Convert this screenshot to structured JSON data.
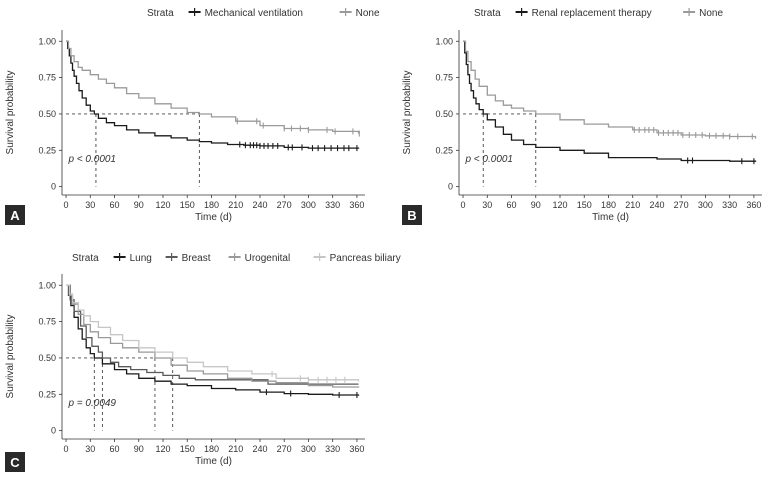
{
  "chart_data": [
    {
      "type": "line",
      "panel": "A",
      "legend_title": "Strata",
      "xlabel": "Time (d)",
      "ylabel": "Survival probability",
      "xticks": [
        0,
        30,
        60,
        90,
        120,
        150,
        180,
        210,
        240,
        270,
        300,
        330,
        360
      ],
      "yticks": [
        0,
        0.25,
        0.5,
        0.75,
        1.0
      ],
      "ytick_labels": [
        "0",
        "0.25",
        "0.50",
        "0.75",
        "1.00"
      ],
      "xlim": [
        -5,
        370
      ],
      "ylim": [
        -0.03,
        1.05
      ],
      "annotation": "p < 0.0001",
      "medians": [
        37,
        165
      ],
      "series": [
        {
          "name": "Mechanical ventilation",
          "color": "#1a1a1a",
          "points": [
            [
              0,
              1.0
            ],
            [
              2,
              0.95
            ],
            [
              4,
              0.9
            ],
            [
              6,
              0.85
            ],
            [
              8,
              0.8
            ],
            [
              10,
              0.76
            ],
            [
              13,
              0.71
            ],
            [
              16,
              0.66
            ],
            [
              20,
              0.61
            ],
            [
              25,
              0.56
            ],
            [
              30,
              0.52
            ],
            [
              35,
              0.5
            ],
            [
              40,
              0.47
            ],
            [
              50,
              0.44
            ],
            [
              60,
              0.42
            ],
            [
              75,
              0.39
            ],
            [
              90,
              0.37
            ],
            [
              110,
              0.35
            ],
            [
              130,
              0.335
            ],
            [
              150,
              0.32
            ],
            [
              165,
              0.31
            ],
            [
              180,
              0.3
            ],
            [
              200,
              0.29
            ],
            [
              220,
              0.285
            ],
            [
              240,
              0.28
            ],
            [
              270,
              0.27
            ],
            [
              300,
              0.265
            ],
            [
              330,
              0.265
            ],
            [
              362,
              0.26
            ]
          ],
          "censor_x": [
            215,
            222,
            228,
            232,
            236,
            240,
            245,
            250,
            256,
            262,
            275,
            280,
            292,
            305,
            312,
            320,
            328,
            336,
            344,
            350,
            360
          ]
        },
        {
          "name": "None",
          "color": "#9a9a9a",
          "points": [
            [
              0,
              1.0
            ],
            [
              3,
              0.95
            ],
            [
              6,
              0.9
            ],
            [
              10,
              0.86
            ],
            [
              15,
              0.82
            ],
            [
              20,
              0.8
            ],
            [
              30,
              0.77
            ],
            [
              40,
              0.74
            ],
            [
              50,
              0.71
            ],
            [
              60,
              0.68
            ],
            [
              75,
              0.64
            ],
            [
              90,
              0.61
            ],
            [
              110,
              0.57
            ],
            [
              130,
              0.54
            ],
            [
              150,
              0.51
            ],
            [
              165,
              0.5
            ],
            [
              180,
              0.48
            ],
            [
              210,
              0.45
            ],
            [
              240,
              0.42
            ],
            [
              270,
              0.4
            ],
            [
              300,
              0.39
            ],
            [
              330,
              0.38
            ],
            [
              362,
              0.365
            ]
          ],
          "censor_x": [
            212,
            236,
            244,
            270,
            279,
            290,
            300,
            323,
            333,
            355,
            363
          ]
        }
      ]
    },
    {
      "type": "line",
      "panel": "B",
      "legend_title": "Strata",
      "xlabel": "Time (d)",
      "ylabel": "Survival probability",
      "xticks": [
        0,
        30,
        60,
        90,
        120,
        150,
        180,
        210,
        240,
        270,
        300,
        330,
        360
      ],
      "yticks": [
        0,
        0.25,
        0.5,
        0.75,
        1.0
      ],
      "ytick_labels": [
        "0",
        "0.25",
        "0.50",
        "0.75",
        "1.00"
      ],
      "xlim": [
        -5,
        370
      ],
      "ylim": [
        -0.03,
        1.05
      ],
      "annotation": "p < 0.0001",
      "medians": [
        25,
        90
      ],
      "series": [
        {
          "name": "Renal replacement therapy",
          "color": "#1a1a1a",
          "points": [
            [
              0,
              1.0
            ],
            [
              2,
              0.92
            ],
            [
              4,
              0.84
            ],
            [
              6,
              0.77
            ],
            [
              8,
              0.71
            ],
            [
              10,
              0.66
            ],
            [
              13,
              0.61
            ],
            [
              16,
              0.57
            ],
            [
              20,
              0.53
            ],
            [
              25,
              0.5
            ],
            [
              30,
              0.46
            ],
            [
              40,
              0.41
            ],
            [
              50,
              0.36
            ],
            [
              60,
              0.32
            ],
            [
              75,
              0.29
            ],
            [
              90,
              0.27
            ],
            [
              120,
              0.25
            ],
            [
              150,
              0.23
            ],
            [
              180,
              0.2
            ],
            [
              210,
              0.2
            ],
            [
              240,
              0.19
            ],
            [
              270,
              0.18
            ],
            [
              300,
              0.18
            ],
            [
              330,
              0.175
            ],
            [
              362,
              0.17
            ]
          ],
          "censor_x": [
            278,
            284,
            345,
            360
          ]
        },
        {
          "name": "None",
          "color": "#9a9a9a",
          "points": [
            [
              0,
              1.0
            ],
            [
              3,
              0.93
            ],
            [
              6,
              0.86
            ],
            [
              10,
              0.8
            ],
            [
              15,
              0.74
            ],
            [
              20,
              0.69
            ],
            [
              30,
              0.63
            ],
            [
              40,
              0.59
            ],
            [
              50,
              0.56
            ],
            [
              60,
              0.54
            ],
            [
              75,
              0.52
            ],
            [
              90,
              0.5
            ],
            [
              120,
              0.46
            ],
            [
              150,
              0.43
            ],
            [
              180,
              0.41
            ],
            [
              210,
              0.39
            ],
            [
              240,
              0.37
            ],
            [
              270,
              0.355
            ],
            [
              300,
              0.35
            ],
            [
              330,
              0.345
            ],
            [
              362,
              0.33
            ]
          ],
          "censor_x": [
            212,
            218,
            225,
            230,
            236,
            242,
            248,
            254,
            260,
            266,
            272,
            280,
            288,
            296,
            305,
            313,
            322,
            330,
            340,
            358
          ]
        }
      ]
    },
    {
      "type": "line",
      "panel": "C",
      "legend_title": "Strata",
      "xlabel": "Time (d)",
      "ylabel": "Survival probability",
      "xticks": [
        0,
        30,
        60,
        90,
        120,
        150,
        180,
        210,
        240,
        270,
        300,
        330,
        360
      ],
      "yticks": [
        0,
        0.25,
        0.5,
        0.75,
        1.0
      ],
      "ytick_labels": [
        "0",
        "0.25",
        "0.50",
        "0.75",
        "1.00"
      ],
      "xlim": [
        -5,
        370
      ],
      "ylim": [
        -0.03,
        1.05
      ],
      "annotation": "p = 0.0049",
      "medians": [
        35,
        45,
        110,
        132
      ],
      "series": [
        {
          "name": "Lung",
          "color": "#1a1a1a",
          "points": [
            [
              0,
              1.0
            ],
            [
              3,
              0.93
            ],
            [
              6,
              0.86
            ],
            [
              10,
              0.78
            ],
            [
              15,
              0.7
            ],
            [
              20,
              0.63
            ],
            [
              25,
              0.57
            ],
            [
              30,
              0.53
            ],
            [
              35,
              0.5
            ],
            [
              45,
              0.46
            ],
            [
              60,
              0.42
            ],
            [
              75,
              0.39
            ],
            [
              90,
              0.36
            ],
            [
              110,
              0.34
            ],
            [
              130,
              0.32
            ],
            [
              150,
              0.31
            ],
            [
              180,
              0.29
            ],
            [
              210,
              0.28
            ],
            [
              240,
              0.265
            ],
            [
              270,
              0.255
            ],
            [
              300,
              0.25
            ],
            [
              330,
              0.245
            ],
            [
              362,
              0.24
            ]
          ],
          "censor_x": [
            248,
            278,
            338,
            360
          ]
        },
        {
          "name": "Breast",
          "color": "#5a5a5a",
          "points": [
            [
              0,
              1.0
            ],
            [
              5,
              0.9
            ],
            [
              10,
              0.82
            ],
            [
              18,
              0.72
            ],
            [
              25,
              0.64
            ],
            [
              32,
              0.58
            ],
            [
              40,
              0.54
            ],
            [
              45,
              0.5
            ],
            [
              55,
              0.47
            ],
            [
              65,
              0.44
            ],
            [
              80,
              0.42
            ],
            [
              100,
              0.4
            ],
            [
              120,
              0.38
            ],
            [
              140,
              0.36
            ],
            [
              160,
              0.35
            ],
            [
              200,
              0.35
            ],
            [
              250,
              0.32
            ],
            [
              300,
              0.32
            ],
            [
              362,
              0.32
            ]
          ],
          "censor_x": []
        },
        {
          "name": "Urogenital",
          "color": "#9a9a9a",
          "points": [
            [
              0,
              1.0
            ],
            [
              4,
              0.93
            ],
            [
              8,
              0.87
            ],
            [
              15,
              0.8
            ],
            [
              22,
              0.73
            ],
            [
              30,
              0.68
            ],
            [
              40,
              0.64
            ],
            [
              55,
              0.6
            ],
            [
              70,
              0.57
            ],
            [
              90,
              0.54
            ],
            [
              110,
              0.5
            ],
            [
              130,
              0.45
            ],
            [
              150,
              0.41
            ],
            [
              170,
              0.39
            ],
            [
              200,
              0.36
            ],
            [
              230,
              0.34
            ],
            [
              260,
              0.33
            ],
            [
              300,
              0.31
            ],
            [
              330,
              0.3
            ],
            [
              362,
              0.295
            ]
          ],
          "censor_x": []
        },
        {
          "name": "Pancreas biliary",
          "color": "#c6c6c6",
          "points": [
            [
              0,
              1.0
            ],
            [
              4,
              0.94
            ],
            [
              8,
              0.88
            ],
            [
              15,
              0.83
            ],
            [
              22,
              0.79
            ],
            [
              30,
              0.75
            ],
            [
              40,
              0.71
            ],
            [
              55,
              0.66
            ],
            [
              70,
              0.62
            ],
            [
              90,
              0.57
            ],
            [
              110,
              0.54
            ],
            [
              132,
              0.5
            ],
            [
              150,
              0.47
            ],
            [
              170,
              0.44
            ],
            [
              200,
              0.41
            ],
            [
              230,
              0.39
            ],
            [
              260,
              0.36
            ],
            [
              300,
              0.35
            ],
            [
              330,
              0.35
            ],
            [
              362,
              0.34
            ]
          ],
          "censor_x": [
            255,
            290,
            300,
            312,
            323,
            334,
            345
          ]
        }
      ]
    }
  ]
}
